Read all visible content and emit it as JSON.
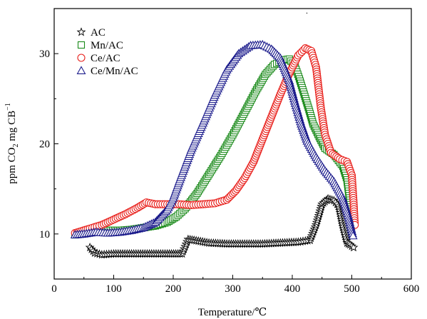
{
  "chart_data": {
    "type": "scatter",
    "title": "",
    "xlabel": "Temperature/℃",
    "ylabel": {
      "main": "ppm CO",
      "sub": "2",
      "rest": " mg CB",
      "sup": "−1"
    },
    "xlim": [
      0,
      600
    ],
    "ylim": [
      5,
      35
    ],
    "xticks": [
      0,
      100,
      200,
      300,
      400,
      500,
      600
    ],
    "yticks": [
      10,
      20,
      30
    ],
    "xtick_labels": [
      "0",
      "100",
      "200",
      "300",
      "400",
      "500",
      "600"
    ],
    "ytick_labels": [
      "10",
      "20",
      "30"
    ],
    "grid": false,
    "legend_position": "top-left",
    "series": [
      {
        "name": "AC",
        "marker": "star",
        "color": "#000000",
        "points": [
          [
            60,
            8.5
          ],
          [
            68,
            7.9
          ],
          [
            80,
            7.7
          ],
          [
            100,
            7.8
          ],
          [
            130,
            7.8
          ],
          [
            160,
            7.8
          ],
          [
            190,
            7.8
          ],
          [
            215,
            7.8
          ],
          [
            220,
            8.6
          ],
          [
            225,
            9.4
          ],
          [
            235,
            9.3
          ],
          [
            260,
            9.0
          ],
          [
            290,
            8.9
          ],
          [
            320,
            8.9
          ],
          [
            350,
            8.9
          ],
          [
            380,
            9.0
          ],
          [
            410,
            9.1
          ],
          [
            430,
            9.3
          ],
          [
            440,
            11.0
          ],
          [
            450,
            13.3
          ],
          [
            460,
            13.9
          ],
          [
            470,
            13.7
          ],
          [
            478,
            13.1
          ],
          [
            485,
            10.8
          ],
          [
            492,
            9.0
          ],
          [
            497,
            8.8
          ],
          [
            503,
            8.5
          ]
        ]
      },
      {
        "name": "Mn/AC",
        "marker": "square",
        "color": "#1a8a1a",
        "points": [
          [
            35,
            9.9
          ],
          [
            50,
            10.1
          ],
          [
            70,
            10.3
          ],
          [
            90,
            10.4
          ],
          [
            110,
            10.4
          ],
          [
            130,
            10.5
          ],
          [
            150,
            10.7
          ],
          [
            170,
            10.9
          ],
          [
            190,
            11.3
          ],
          [
            205,
            11.9
          ],
          [
            220,
            12.8
          ],
          [
            240,
            14.5
          ],
          [
            260,
            16.6
          ],
          [
            280,
            18.7
          ],
          [
            300,
            21.0
          ],
          [
            320,
            23.5
          ],
          [
            340,
            26.0
          ],
          [
            355,
            27.7
          ],
          [
            370,
            28.8
          ],
          [
            385,
            29.3
          ],
          [
            395,
            29.4
          ],
          [
            405,
            28.5
          ],
          [
            412,
            27.2
          ],
          [
            420,
            25.5
          ],
          [
            428,
            23.8
          ],
          [
            435,
            22.2
          ],
          [
            445,
            20.8
          ],
          [
            455,
            19.5
          ],
          [
            470,
            18.8
          ],
          [
            485,
            17.5
          ],
          [
            492,
            16.0
          ],
          [
            497,
            13.5
          ],
          [
            500,
            11.0
          ]
        ]
      },
      {
        "name": "Ce/AC",
        "marker": "circle",
        "color": "#e8201c",
        "points": [
          [
            35,
            10.1
          ],
          [
            60,
            10.6
          ],
          [
            80,
            11.0
          ],
          [
            100,
            11.6
          ],
          [
            120,
            12.2
          ],
          [
            140,
            12.9
          ],
          [
            155,
            13.5
          ],
          [
            170,
            13.3
          ],
          [
            190,
            13.3
          ],
          [
            210,
            13.3
          ],
          [
            230,
            13.2
          ],
          [
            250,
            13.3
          ],
          [
            270,
            13.4
          ],
          [
            290,
            13.8
          ],
          [
            305,
            14.8
          ],
          [
            320,
            16.2
          ],
          [
            335,
            18.0
          ],
          [
            350,
            20.5
          ],
          [
            365,
            23.0
          ],
          [
            380,
            25.5
          ],
          [
            395,
            27.8
          ],
          [
            410,
            29.8
          ],
          [
            422,
            30.6
          ],
          [
            432,
            30.3
          ],
          [
            440,
            28.5
          ],
          [
            448,
            24.0
          ],
          [
            455,
            21.0
          ],
          [
            465,
            19.0
          ],
          [
            480,
            18.3
          ],
          [
            492,
            18.0
          ],
          [
            500,
            16.5
          ],
          [
            503,
            13.5
          ],
          [
            505,
            11.0
          ]
        ]
      },
      {
        "name": "Ce/Mn/AC",
        "marker": "triangle",
        "color": "#1c1c8c",
        "points": [
          [
            35,
            9.9
          ],
          [
            50,
            10.0
          ],
          [
            70,
            10.2
          ],
          [
            90,
            10.1
          ],
          [
            110,
            10.2
          ],
          [
            130,
            10.4
          ],
          [
            150,
            10.7
          ],
          [
            170,
            11.3
          ],
          [
            190,
            12.7
          ],
          [
            200,
            14.0
          ],
          [
            210,
            15.8
          ],
          [
            230,
            19.3
          ],
          [
            250,
            22.3
          ],
          [
            270,
            25.4
          ],
          [
            290,
            28.2
          ],
          [
            310,
            30.0
          ],
          [
            330,
            30.9
          ],
          [
            350,
            31.0
          ],
          [
            365,
            30.5
          ],
          [
            380,
            29.5
          ],
          [
            395,
            27.0
          ],
          [
            405,
            24.5
          ],
          [
            415,
            22.2
          ],
          [
            425,
            20.3
          ],
          [
            440,
            18.5
          ],
          [
            455,
            17.0
          ],
          [
            470,
            15.8
          ],
          [
            485,
            14.0
          ],
          [
            495,
            11.8
          ],
          [
            502,
            9.8
          ]
        ]
      }
    ]
  },
  "footer_dot": "."
}
